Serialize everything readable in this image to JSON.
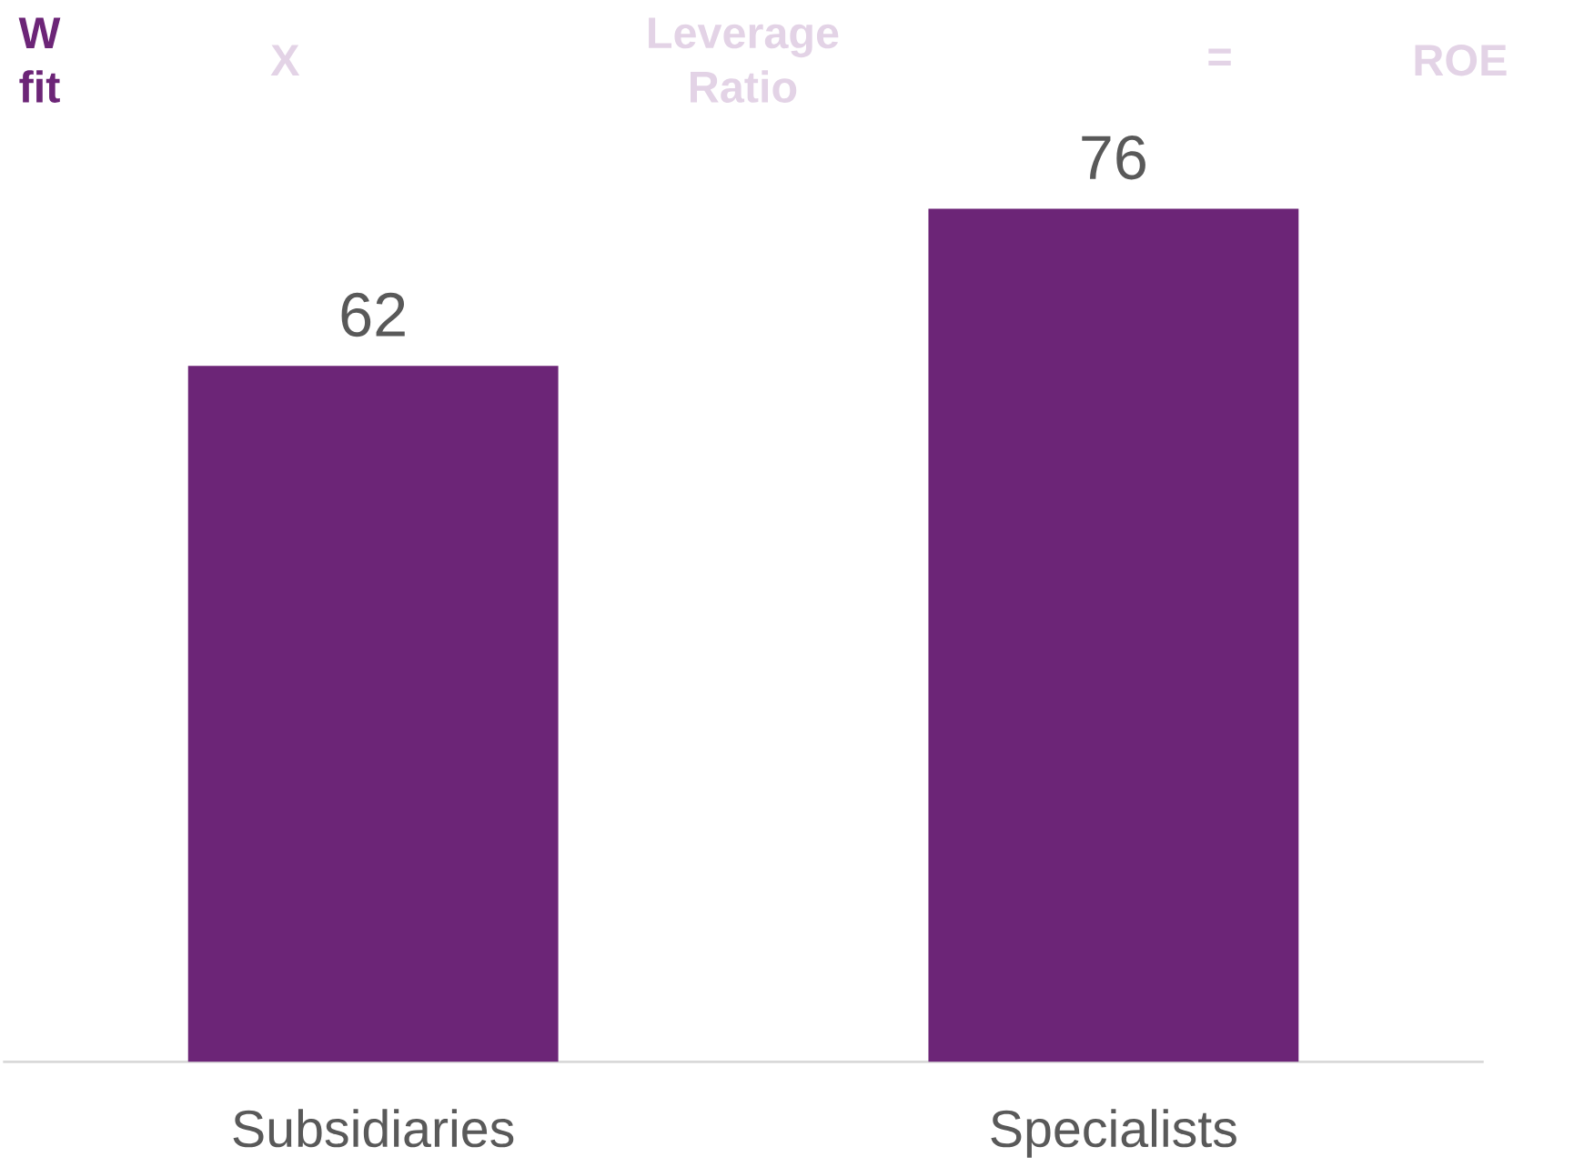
{
  "chart_data": {
    "type": "bar",
    "categories": [
      "Subsidiaries",
      "Specialists"
    ],
    "values": [
      62,
      76
    ],
    "color": "#6c2577",
    "data_labels": true,
    "annotations": [
      "W fit",
      "X",
      "Leverage Ratio",
      "=",
      "ROE"
    ]
  }
}
